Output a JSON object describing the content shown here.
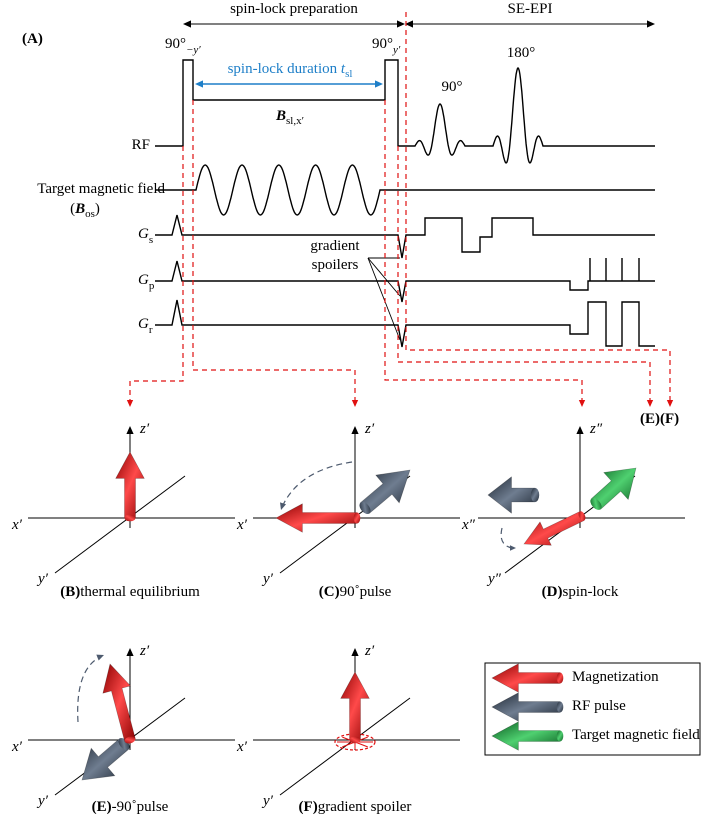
{
  "timing": {
    "label": "(A)",
    "phases": [
      "spin-lock preparation",
      "SE-EPI"
    ],
    "pulse_left": {
      "angle": "90°",
      "phase": "−y′"
    },
    "pulse_right": {
      "angle": "90°",
      "phase": "y′"
    },
    "duration": {
      "text": "spin-lock duration ",
      "symbol": "t",
      "sub": "sl"
    },
    "field": {
      "symbol": "B",
      "sub": "sl,x′"
    },
    "epi_pulses": [
      "90°",
      "180°"
    ],
    "rows": {
      "rf": "RF",
      "target": "Target magnetic field",
      "target_symbol": {
        "open": "(",
        "symbol": "B",
        "sub": "os",
        "close": ")"
      },
      "gs": {
        "symbol": "G",
        "sub": "s"
      },
      "gp": {
        "symbol": "G",
        "sub": "p"
      },
      "gr": {
        "symbol": "G",
        "sub": "r"
      }
    },
    "spoilers": [
      "gradient",
      "spoilers"
    ],
    "targets": [
      "(E)",
      "(F)"
    ]
  },
  "panels": [
    {
      "label": "(B)",
      "caption": "thermal equilibrium",
      "axes": {
        "z": "z′",
        "x": "x′",
        "y": "y′"
      }
    },
    {
      "label": "(C)",
      "caption": "90˚pulse",
      "axes": {
        "z": "z′",
        "x": "x′",
        "y": "y′"
      }
    },
    {
      "label": "(D)",
      "caption": "spin-lock",
      "axes": {
        "z": "z″",
        "x": "x″",
        "y": "y″"
      }
    },
    {
      "label": "(E)",
      "caption": "-90˚pulse",
      "axes": {
        "z": "z′",
        "x": "x′",
        "y": "y′"
      }
    },
    {
      "label": "(F)",
      "caption": "gradient spoiler",
      "axes": {
        "z": "z′",
        "x": "x′",
        "y": "y′"
      }
    }
  ],
  "legend": [
    "Magnetization",
    "RF pulse",
    "Target magnetic field"
  ]
}
